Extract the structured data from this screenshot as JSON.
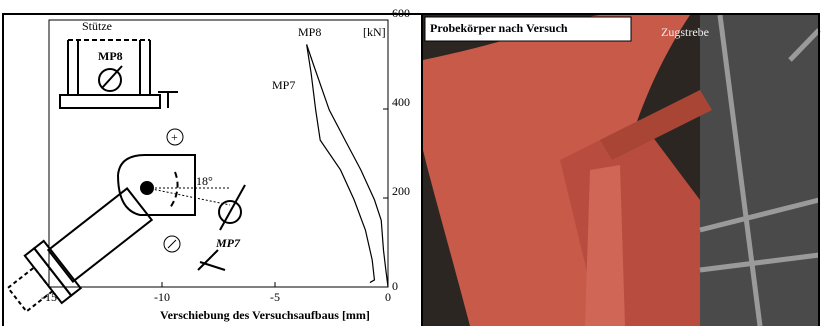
{
  "chart_data": {
    "type": "line",
    "xlabel": "Verschiebung des Versuchsaufbaus [mm]",
    "y_unit": "[kN]",
    "xlim": [
      -15,
      0
    ],
    "xticks": [
      -15,
      -10,
      -5,
      0
    ],
    "ylim": [
      0,
      600
    ],
    "yticks": [
      0,
      200,
      400,
      600
    ],
    "grid": false,
    "annotations": [
      "Stütze",
      "MP8",
      "18°",
      "MP7"
    ],
    "series": [
      {
        "name": "MP8",
        "color": "#000000",
        "x": [
          -3.6,
          -3.3,
          -2.6,
          -1.9,
          -1.2,
          -0.6,
          -0.3,
          -0.2,
          -0.1,
          0
        ],
        "values": [
          545,
          500,
          398,
          330,
          263,
          196,
          150,
          83,
          40,
          0
        ]
      },
      {
        "name": "MP7",
        "color": "#000000",
        "x": [
          -3.6,
          -3.4,
          -3.2,
          -3.0,
          -2.1,
          -1.5,
          -1.0,
          -0.7,
          -0.6,
          -0.8
        ],
        "values": [
          545,
          480,
          398,
          330,
          263,
          196,
          128,
          61,
          16,
          10
        ]
      }
    ]
  },
  "photo": {
    "title": "Probekörper nach Versuch",
    "label": "Zugstrebe"
  }
}
